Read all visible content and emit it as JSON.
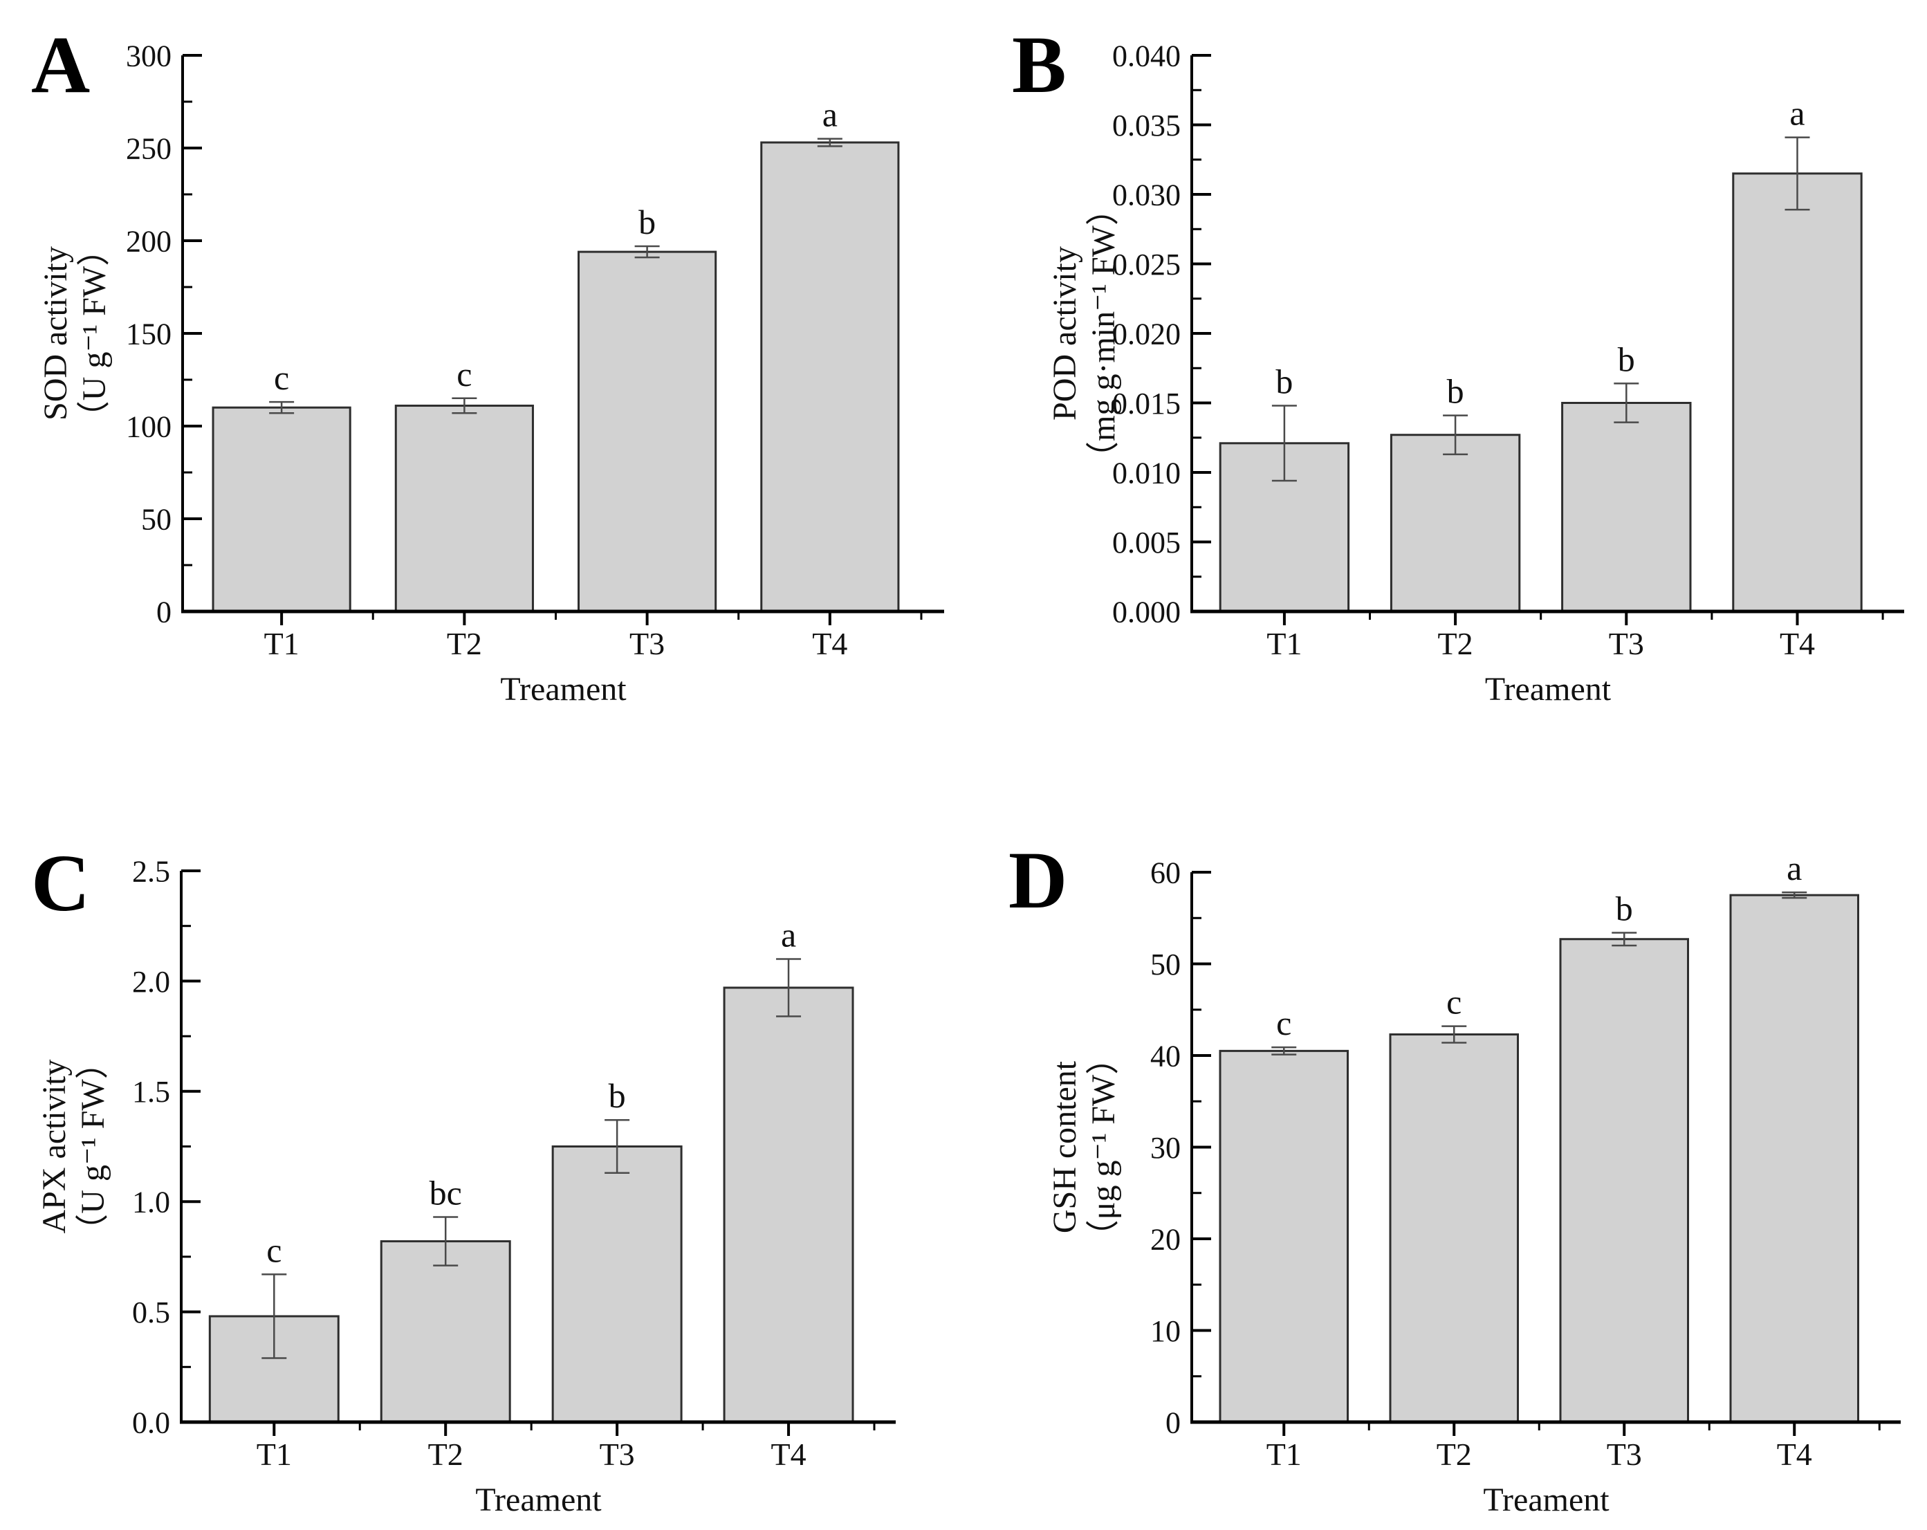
{
  "figure_title": "",
  "xlabel_shared": "Treament",
  "categories": [
    "T1",
    "T2",
    "T3",
    "T4"
  ],
  "colors": {
    "bar_fill": "#d2d2d2",
    "bar_stroke": "#2e2e2e",
    "axis": "#000000",
    "error_bar": "#4a4a4a",
    "text": "#111111"
  },
  "chart_data": [
    {
      "panel_letter": "A",
      "type": "bar",
      "title": "",
      "ylabel_line1": "SOD activity",
      "ylabel_line2": "（U g⁻¹ FW）",
      "xlabel": "Treament",
      "categories": [
        "T1",
        "T2",
        "T3",
        "T4"
      ],
      "values": [
        110,
        111,
        194,
        253
      ],
      "errors": [
        3,
        4,
        3,
        2
      ],
      "sig_letters": [
        "c",
        "c",
        "b",
        "a"
      ],
      "ylim": [
        0,
        300
      ],
      "ymajor": 50,
      "yminor": 25,
      "decimals": 0,
      "grid": false,
      "legend": "none"
    },
    {
      "panel_letter": "B",
      "type": "bar",
      "title": "",
      "ylabel_line1": "POD activity",
      "ylabel_line2": "（mg g·min⁻¹ FW）",
      "xlabel": "Treament",
      "categories": [
        "T1",
        "T2",
        "T3",
        "T4"
      ],
      "values": [
        0.0121,
        0.0127,
        0.015,
        0.0315
      ],
      "errors": [
        0.0027,
        0.0014,
        0.0014,
        0.0026
      ],
      "sig_letters": [
        "b",
        "b",
        "b",
        "a"
      ],
      "ylim": [
        0,
        0.04
      ],
      "ymajor": 0.005,
      "yminor": 0.0025,
      "decimals": 3,
      "grid": false,
      "legend": "none"
    },
    {
      "panel_letter": "C",
      "type": "bar",
      "title": "",
      "ylabel_line1": "APX activity",
      "ylabel_line2": "（U g⁻¹ FW）",
      "xlabel": "Treament",
      "categories": [
        "T1",
        "T2",
        "T3",
        "T4"
      ],
      "values": [
        0.48,
        0.82,
        1.25,
        1.97
      ],
      "errors": [
        0.19,
        0.11,
        0.12,
        0.13
      ],
      "sig_letters": [
        "c",
        "bc",
        "b",
        "a"
      ],
      "ylim": [
        0,
        2.5
      ],
      "ymajor": 0.5,
      "yminor": 0.25,
      "decimals": 1,
      "grid": false,
      "legend": "none"
    },
    {
      "panel_letter": "D",
      "type": "bar",
      "title": "",
      "ylabel_line1": "GSH content",
      "ylabel_line2": "（μg g⁻¹ FW）",
      "xlabel": "Treament",
      "categories": [
        "T1",
        "T2",
        "T3",
        "T4"
      ],
      "values": [
        40.5,
        42.3,
        52.7,
        57.5
      ],
      "errors": [
        0.4,
        0.9,
        0.7,
        0.3
      ],
      "sig_letters": [
        "c",
        "c",
        "b",
        "a"
      ],
      "ylim": [
        0,
        60
      ],
      "ymajor": 10,
      "yminor": 5,
      "decimals": 0,
      "grid": false,
      "legend": "none"
    }
  ]
}
